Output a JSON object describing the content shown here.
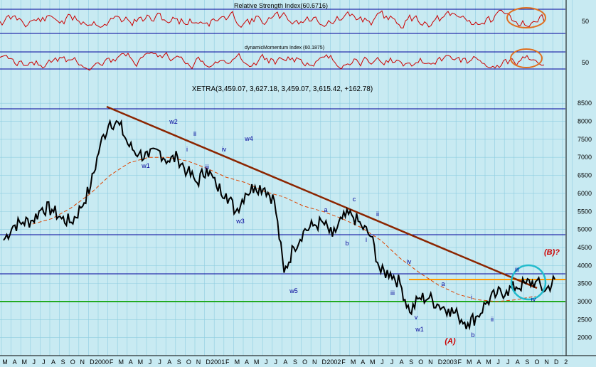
{
  "chart_data": [
    {
      "type": "line",
      "title": "Relative Strength Index(60.6716)",
      "ylevels": [
        50
      ],
      "ytick_labels": [
        "50"
      ],
      "series": [
        {
          "name": "RSI",
          "color": "#cc0000"
        }
      ]
    },
    {
      "type": "line",
      "title": "dynamicMomentum Index (60.1875)",
      "ytick_labels": [
        "50"
      ],
      "series": [
        {
          "name": "DMI",
          "color": "#cc0000"
        }
      ]
    },
    {
      "type": "line",
      "title": "XETRA(3,459.07, 3,627.18, 3,459.07, 3,615.42, +162.78)",
      "ylim": [
        1500,
        8800
      ],
      "yticks": [
        2000,
        2500,
        3000,
        3500,
        4000,
        4500,
        5000,
        5500,
        6000,
        6500,
        7000,
        7500,
        8000,
        8500
      ],
      "ytick_labels": [
        "2000",
        "2500",
        "3000",
        "3500",
        "4000",
        "4500",
        "5000",
        "5500",
        "6000",
        "6500",
        "7000",
        "7500",
        "8000",
        "8500"
      ],
      "x_months": [
        "M",
        "A",
        "M",
        "J",
        "J",
        "A",
        "S",
        "O",
        "N",
        "D",
        "2000",
        "F",
        "M",
        "A",
        "M",
        "J",
        "J",
        "A",
        "S",
        "O",
        "N",
        "D",
        "2001",
        "F",
        "M",
        "A",
        "M",
        "J",
        "J",
        "A",
        "S",
        "O",
        "N",
        "D",
        "2002",
        "F",
        "M",
        "A",
        "M",
        "J",
        "J",
        "A",
        "S",
        "O",
        "N",
        "D",
        "2003",
        "F",
        "M",
        "A",
        "M",
        "J",
        "J",
        "A",
        "S",
        "O",
        "N",
        "D",
        "2"
      ],
      "series": [
        {
          "name": "XETRA",
          "color": "#000000",
          "x": [
            0,
            1,
            2,
            3,
            4,
            5,
            6,
            7,
            8,
            9,
            10,
            11,
            12,
            13,
            14,
            15,
            16,
            17,
            18,
            19,
            20,
            21,
            22,
            23,
            24,
            25,
            26,
            27,
            28,
            29,
            30,
            31,
            32,
            33,
            34,
            35,
            36,
            37,
            38,
            39,
            40,
            41,
            42,
            43,
            44,
            45,
            46,
            47,
            48,
            49,
            50,
            51,
            52,
            53,
            54,
            55,
            56,
            57
          ],
          "values": [
            4700,
            5100,
            5200,
            5250,
            5600,
            5550,
            5300,
            5200,
            5600,
            6200,
            7350,
            8000,
            7900,
            7300,
            7100,
            7000,
            7200,
            6900,
            7000,
            6600,
            6300,
            6700,
            6200,
            6000,
            5500,
            6000,
            6200,
            6150,
            5800,
            3800,
            4500,
            4950,
            5100,
            5200,
            4800,
            5300,
            5400,
            5100,
            4800,
            3800,
            3800,
            3500,
            2700,
            3100,
            3100,
            2900,
            2800,
            2600,
            2400,
            2600,
            3000,
            3200,
            3300,
            3400,
            3500,
            3550,
            3300,
            3615
          ]
        },
        {
          "name": "Moving Average",
          "color": "#dd4400",
          "x": [
            3,
            5,
            7,
            9,
            11,
            13,
            15,
            17,
            19,
            21,
            23,
            25,
            27,
            29,
            31,
            33,
            35,
            37,
            39,
            41,
            43,
            45,
            47,
            49,
            51,
            53,
            55
          ],
          "values": [
            5150,
            5300,
            5600,
            6000,
            6500,
            6850,
            7000,
            7000,
            6900,
            6700,
            6450,
            6300,
            6050,
            5900,
            5650,
            5500,
            5300,
            5050,
            4700,
            4200,
            3800,
            3450,
            3200,
            3050,
            3000,
            3050,
            3150
          ]
        }
      ],
      "horizontal_lines": [
        8000,
        4800,
        3800,
        3650,
        3080
      ],
      "annotations": [
        "w1",
        "w2",
        "ii",
        "i",
        "iii",
        "iv",
        "w3",
        "w4",
        "w5",
        "a",
        "b",
        "c",
        "i",
        "ii",
        "iii",
        "iv",
        "v",
        "w1",
        "a",
        "i",
        "ii",
        "b",
        "iii",
        "iv",
        "(B)?",
        "(A)"
      ]
    }
  ],
  "colors": {
    "panel_bg": "#c8eaf2",
    "grid": "#88c9dc",
    "trendline": "#8b2500",
    "green_line": "#22aa22",
    "orange_line": "#ff9900",
    "blue_line": "#000099",
    "label_red": "#cc0000",
    "circle_orange": "#e07020",
    "circle_cyan": "#22bbcc"
  }
}
